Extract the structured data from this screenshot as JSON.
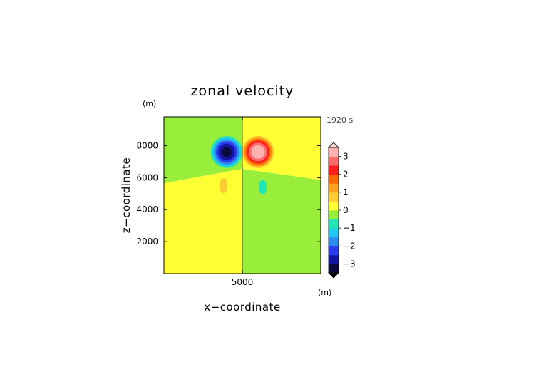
{
  "chart_data": {
    "type": "heatmap",
    "title": "zonal velocity",
    "time_label": "1920 s",
    "xlabel": "x−coordinate",
    "ylabel": "z−coordinate",
    "x_unit": "(m)",
    "z_unit": "(m)",
    "x_ticks": [
      5000
    ],
    "x_tick_labels": [
      "5000"
    ],
    "z_ticks": [
      2000,
      4000,
      6000,
      8000
    ],
    "z_tick_labels": [
      "2000",
      "4000",
      "6000",
      "8000"
    ],
    "xlim": [
      0,
      10000
    ],
    "zlim": [
      0,
      9800
    ],
    "colorbar": {
      "range": [
        -3.5,
        3.5
      ],
      "step": 0.5,
      "colors": [
        "#0a0a3c",
        "#1414a0",
        "#2a3cf0",
        "#2c8cf0",
        "#22c6ee",
        "#22e6b4",
        "#98ee3a",
        "#ffff33",
        "#ffcc33",
        "#ffa020",
        "#ff6a00",
        "#ff1e1e",
        "#ff6a6a",
        "#ffb0b0"
      ],
      "ticks": [
        3,
        2,
        1,
        0,
        -1,
        -2,
        -3
      ],
      "tick_labels": [
        "3",
        "2",
        "1",
        "0",
        "−1",
        "−2",
        "−3"
      ]
    },
    "features": [
      {
        "kind": "vortex",
        "sign": "negative",
        "x": 4000,
        "z": 7600,
        "peak": -3.0
      },
      {
        "kind": "vortex",
        "sign": "positive",
        "x": 6000,
        "z": 7600,
        "peak": 3.3
      },
      {
        "kind": "blob",
        "sign": "positive",
        "x": 3800,
        "z": 5500,
        "peak": 0.8
      },
      {
        "kind": "blob",
        "sign": "negative",
        "x": 6300,
        "z": 5400,
        "peak": -0.8
      }
    ]
  }
}
